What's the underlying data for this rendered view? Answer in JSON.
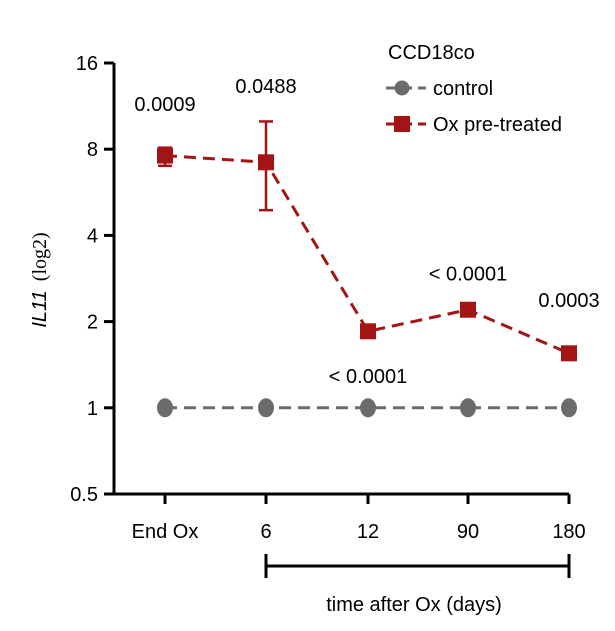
{
  "chart_data": {
    "type": "line",
    "title": "",
    "ylabel_gene": "IL11",
    "ylabel_suffix": "(log2)",
    "xlabel": "time after Ox (days)",
    "yscale": "log2",
    "ylim": [
      0.5,
      16
    ],
    "yticks": [
      0.5,
      1,
      2,
      4,
      8,
      16
    ],
    "ytick_labels": [
      "0.5",
      "1",
      "2",
      "4",
      "8",
      "16"
    ],
    "categories": [
      "End Ox",
      "6",
      "12",
      "90",
      "180"
    ],
    "legend_title": "CCD18co",
    "legend_position": "top-right",
    "series": [
      {
        "name": "control",
        "color": "#6b6b6b",
        "marker": "circle",
        "values": [
          1,
          1,
          1,
          1,
          1
        ],
        "err_low": [
          null,
          null,
          null,
          null,
          null
        ],
        "err_high": [
          null,
          null,
          null,
          null,
          null
        ]
      },
      {
        "name": "Ox pre-treated",
        "color": "#a31515",
        "marker": "square",
        "values": [
          7.6,
          7.2,
          1.85,
          2.2,
          1.55
        ],
        "err_low": [
          7.0,
          4.9,
          null,
          null,
          null
        ],
        "err_high": [
          8.1,
          10.0,
          null,
          null,
          null
        ]
      }
    ],
    "annotations": [
      {
        "text": "0.0009",
        "category": "End Ox",
        "y": 11.5,
        "anchor": "middle"
      },
      {
        "text": "0.0488",
        "category": "6",
        "y": 13.3,
        "anchor": "middle"
      },
      {
        "text": "< 0.0001",
        "category": "12",
        "y": 1.29,
        "anchor": "middle"
      },
      {
        "text": "< 0.0001",
        "category": "90",
        "y": 2.95,
        "anchor": "middle"
      },
      {
        "text": "0.0003",
        "category": "180",
        "y": 2.38,
        "anchor": "middle"
      }
    ]
  }
}
